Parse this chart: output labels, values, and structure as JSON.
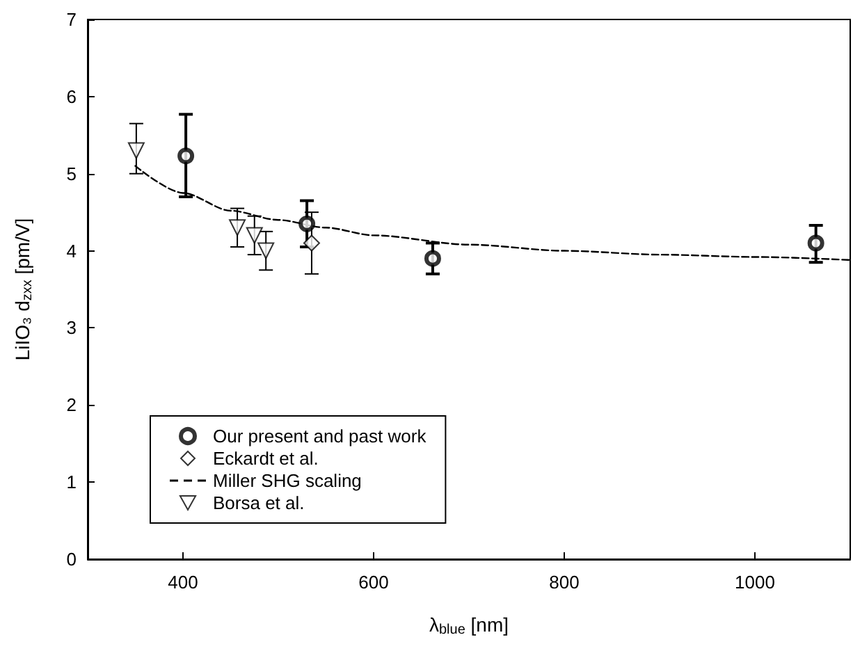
{
  "chart_data": {
    "type": "scatter",
    "xlabel": "λ$_{blue}$ [nm]",
    "ylabel": "LiIO₃ d$_{zxx}$ [pm/V]",
    "xlim": [
      300,
      1100
    ],
    "xticks": [
      400,
      600,
      800,
      1000
    ],
    "ylim": [
      0,
      7
    ],
    "yticks": [
      0,
      1,
      2,
      3,
      4,
      5,
      6,
      7
    ],
    "grid": false,
    "legend": "bottom left",
    "series": [
      {
        "name": "Our present and past work",
        "color": "#000000",
        "marker": "circle",
        "x": [
          403,
          530,
          662,
          1064
        ],
        "values": [
          5.23,
          4.35,
          3.9,
          4.1
        ],
        "errors": [
          [
            4.7,
            5.77
          ],
          [
            4.05,
            4.65
          ],
          [
            3.7,
            4.1
          ],
          [
            3.85,
            4.33
          ]
        ]
      },
      {
        "name": "Eckardt et al.",
        "color": "#000000",
        "marker": "diamond",
        "x": [
          535
        ],
        "values": [
          4.1
        ],
        "errors": [
          [
            3.7,
            4.5
          ]
        ]
      },
      {
        "name": "Miller SHG scaling",
        "type": "line",
        "line_style": "dashed",
        "marker": "none",
        "color": "#000000",
        "x": [
          350,
          400,
          450,
          500,
          550,
          600,
          700,
          800,
          900,
          1000,
          1100
        ],
        "values": [
          5.1,
          4.75,
          4.52,
          4.4,
          4.3,
          4.2,
          4.08,
          4.0,
          3.95,
          3.92,
          3.88
        ]
      },
      {
        "name": "Borsa et al.",
        "color": "#000000",
        "marker": "triangle",
        "x": [
          351,
          457,
          475,
          487
        ],
        "values": [
          5.3,
          4.3,
          4.2,
          4.0
        ],
        "errors": [
          [
            5.0,
            5.65
          ],
          [
            4.05,
            4.55
          ],
          [
            3.95,
            4.45
          ],
          [
            3.75,
            4.25
          ]
        ]
      }
    ]
  }
}
